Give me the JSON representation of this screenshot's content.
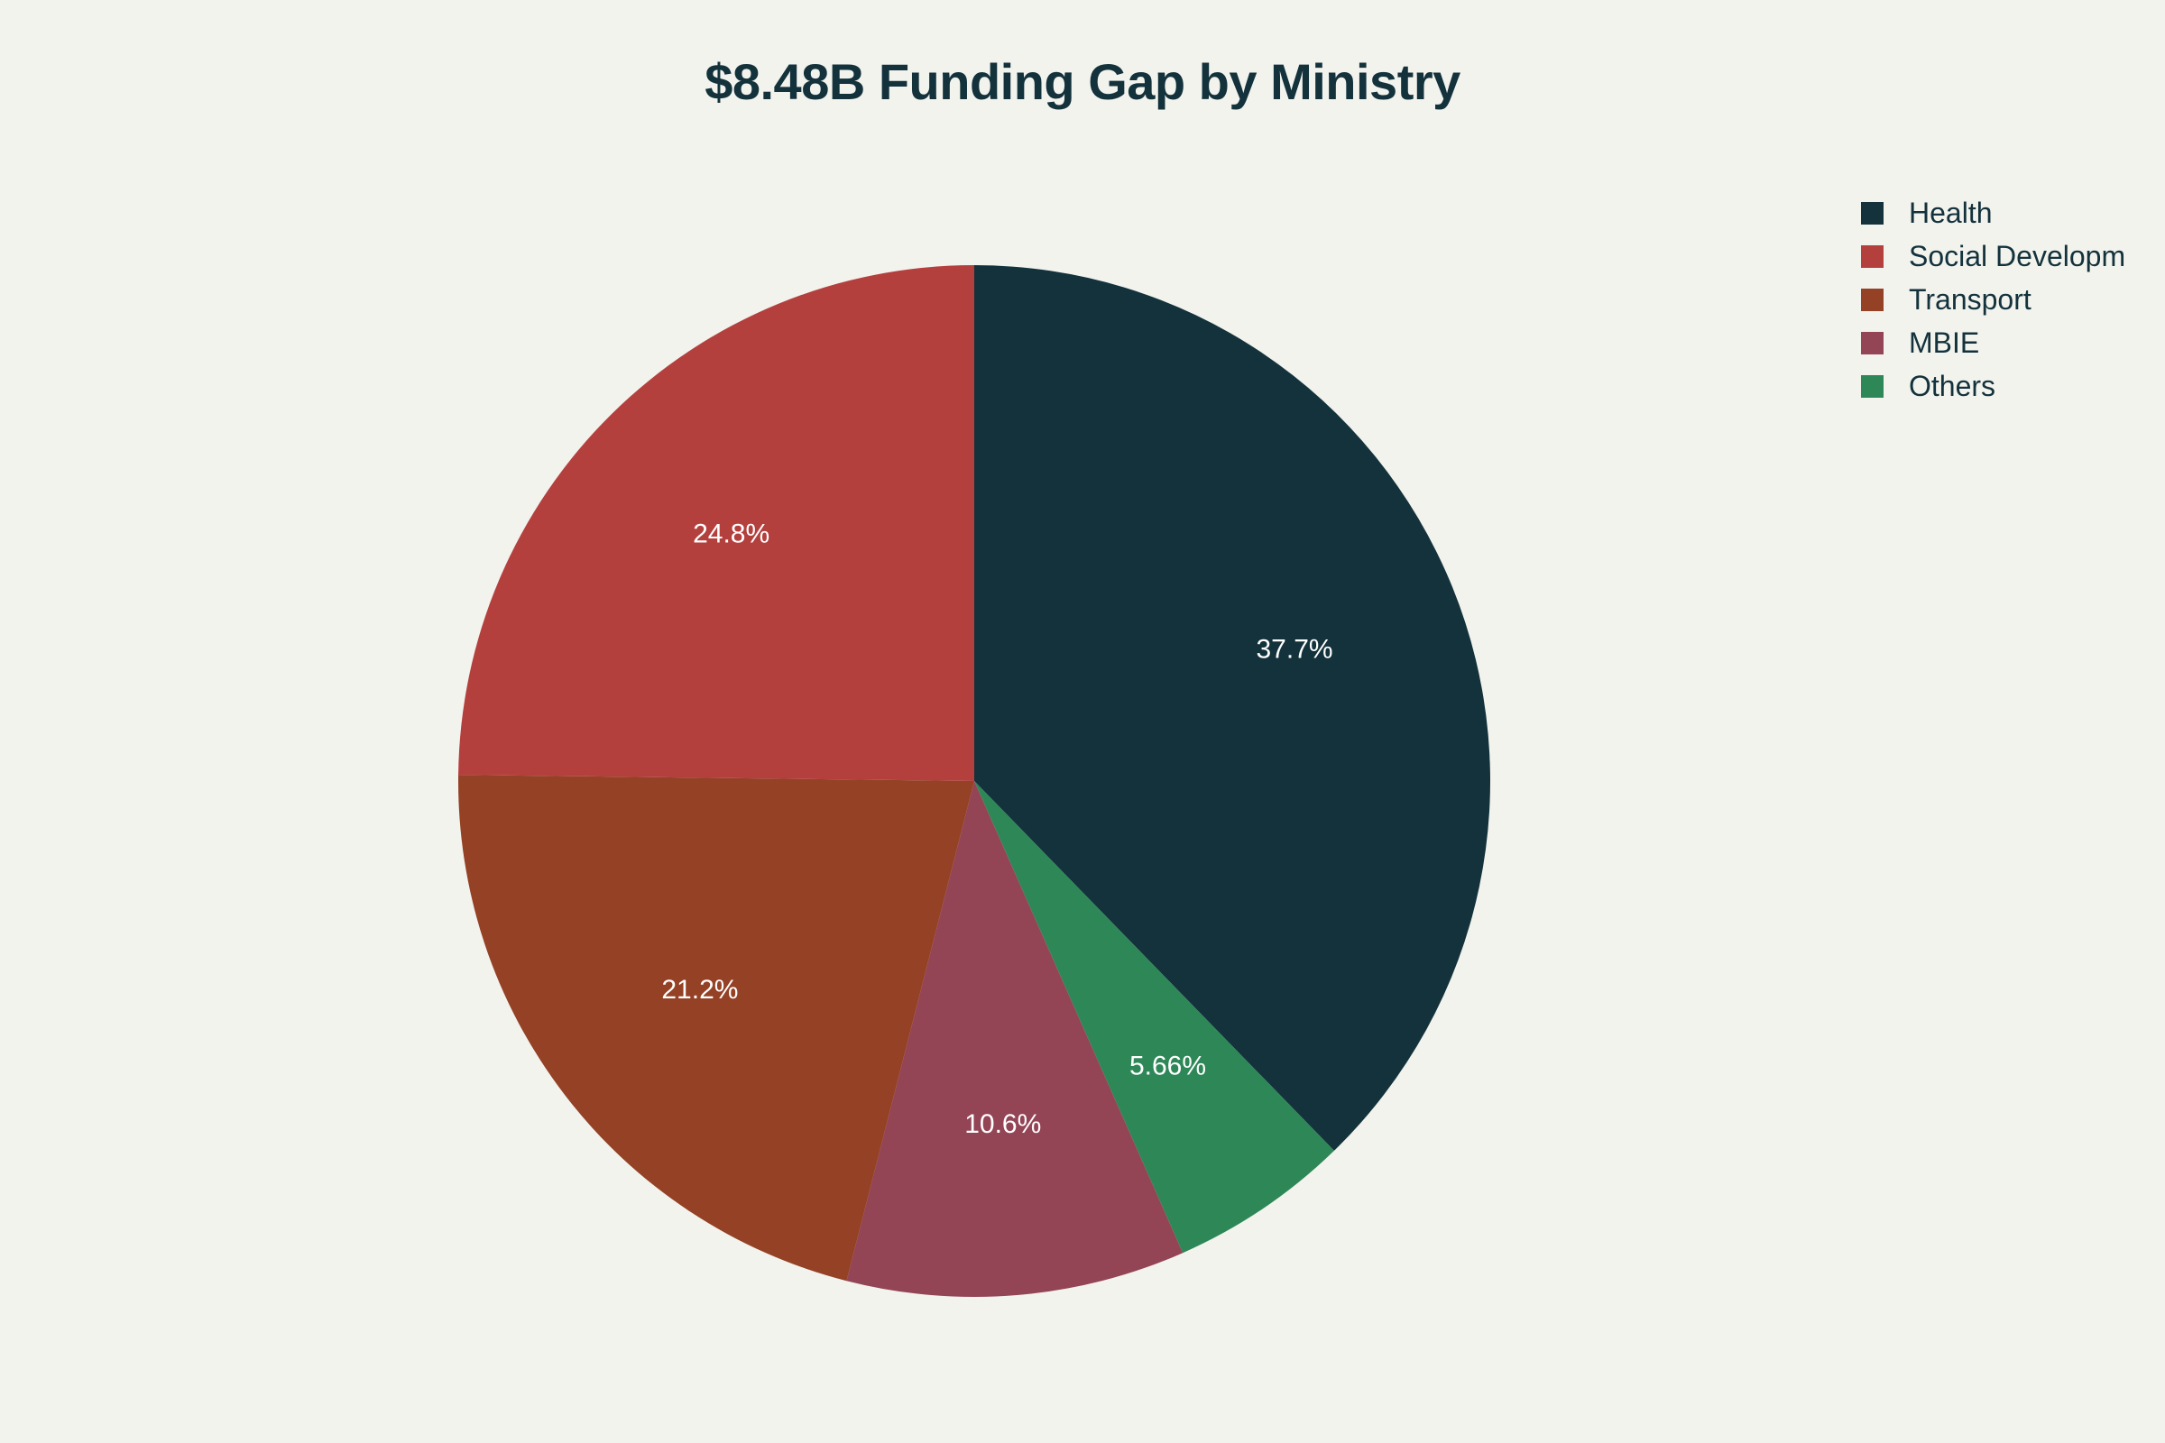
{
  "chart_data": {
    "type": "pie",
    "title": "$8.48B Funding Gap by Ministry",
    "slices": [
      {
        "name": "Health",
        "percent": 37.7,
        "label": "37.7%",
        "color": "#13323c"
      },
      {
        "name": "Social Developm",
        "percent": 24.8,
        "label": "24.8%",
        "color": "#b4403e"
      },
      {
        "name": "Transport",
        "percent": 21.2,
        "label": "21.2%",
        "color": "#944125"
      },
      {
        "name": "MBIE",
        "percent": 10.6,
        "label": "10.6%",
        "color": "#934455"
      },
      {
        "name": "Others",
        "percent": 5.66,
        "label": "5.66%",
        "color": "#2e8757"
      }
    ],
    "slice_order": [
      "Health",
      "Others",
      "MBIE",
      "Transport",
      "Social Developm"
    ],
    "direction": "clockwise",
    "legend_position": "top-right"
  }
}
